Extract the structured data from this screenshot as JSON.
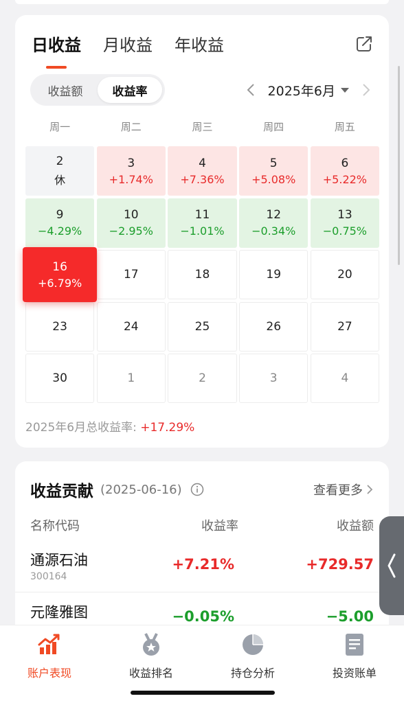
{
  "tabs": [
    "日收益",
    "月收益",
    "年收益"
  ],
  "active_tab": 0,
  "segment": {
    "options": [
      "收益额",
      "收益率"
    ],
    "active": 1
  },
  "month": "2025年6月",
  "weekdays": [
    "周一",
    "周二",
    "周三",
    "周四",
    "周五"
  ],
  "calendar": {
    "cells": [
      {
        "day": "2",
        "value": "休",
        "style": "gray"
      },
      {
        "day": "3",
        "value": "+1.74%",
        "style": "red"
      },
      {
        "day": "4",
        "value": "+7.36%",
        "style": "red"
      },
      {
        "day": "5",
        "value": "+5.08%",
        "style": "red"
      },
      {
        "day": "6",
        "value": "+5.22%",
        "style": "red"
      },
      {
        "day": "9",
        "value": "−4.29%",
        "style": "green"
      },
      {
        "day": "10",
        "value": "−2.95%",
        "style": "green"
      },
      {
        "day": "11",
        "value": "−1.01%",
        "style": "green"
      },
      {
        "day": "12",
        "value": "−0.34%",
        "style": "green"
      },
      {
        "day": "13",
        "value": "−0.75%",
        "style": "green"
      },
      {
        "day": "16",
        "value": "+6.79%",
        "style": "selected"
      },
      {
        "day": "17",
        "value": "",
        "style": "plain"
      },
      {
        "day": "18",
        "value": "",
        "style": "plain"
      },
      {
        "day": "19",
        "value": "",
        "style": "plain"
      },
      {
        "day": "20",
        "value": "",
        "style": "plain"
      },
      {
        "day": "23",
        "value": "",
        "style": "plain"
      },
      {
        "day": "24",
        "value": "",
        "style": "plain"
      },
      {
        "day": "25",
        "value": "",
        "style": "plain"
      },
      {
        "day": "26",
        "value": "",
        "style": "plain"
      },
      {
        "day": "27",
        "value": "",
        "style": "plain"
      },
      {
        "day": "30",
        "value": "",
        "style": "plain"
      },
      {
        "day": "1",
        "value": "",
        "style": "other"
      },
      {
        "day": "2",
        "value": "",
        "style": "other"
      },
      {
        "day": "3",
        "value": "",
        "style": "other"
      },
      {
        "day": "4",
        "value": "",
        "style": "other"
      }
    ]
  },
  "total": {
    "label": "2025年6月总收益率:",
    "value": "+17.29%"
  },
  "contribution": {
    "title": "收益贡献",
    "date": "(2025-06-16)",
    "more": "查看更多",
    "columns": [
      "名称代码",
      "收益率",
      "收益额"
    ],
    "rows": [
      {
        "name": "通源石油",
        "code": "300164",
        "rate": "+7.21%",
        "amount": "+729.57",
        "dir": "up"
      },
      {
        "name": "元隆雅图",
        "code": "",
        "rate": "−0.05%",
        "amount": "−5.00",
        "dir": "down"
      }
    ]
  },
  "tabbar": [
    {
      "label": "账户表现",
      "icon": "trend-chart-icon",
      "active": true
    },
    {
      "label": "收益排名",
      "icon": "medal-icon",
      "active": false
    },
    {
      "label": "持仓分析",
      "icon": "pie-chart-icon",
      "active": false
    },
    {
      "label": "投资账单",
      "icon": "bill-icon",
      "active": false
    }
  ],
  "colors": {
    "accent": "#f04a24",
    "up": "#e82a2a",
    "down": "#1c9e2c",
    "selected": "#f52a2a"
  }
}
